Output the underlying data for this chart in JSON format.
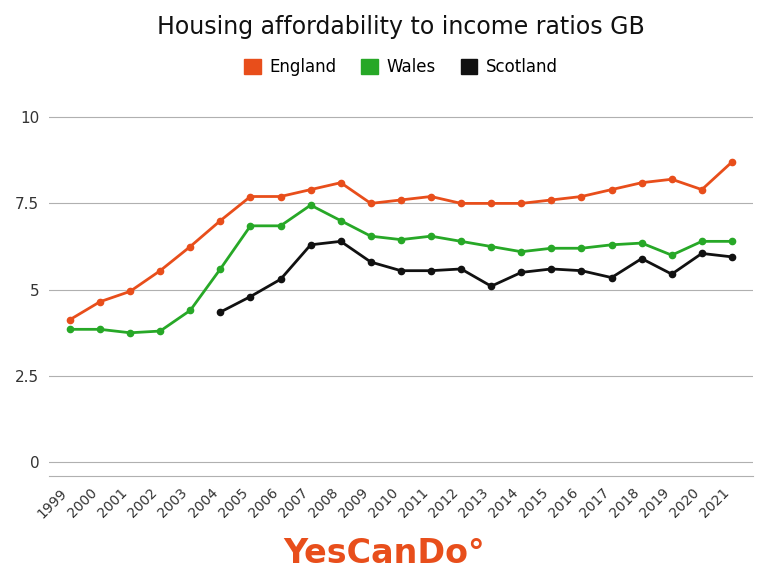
{
  "title": "Housing affordability to income ratios GB",
  "years": [
    1999,
    2000,
    2001,
    2002,
    2003,
    2004,
    2005,
    2006,
    2007,
    2008,
    2009,
    2010,
    2011,
    2012,
    2013,
    2014,
    2015,
    2016,
    2017,
    2018,
    2019,
    2020,
    2021
  ],
  "england": [
    4.13,
    4.65,
    4.95,
    5.55,
    6.25,
    7.0,
    7.7,
    7.7,
    7.9,
    8.1,
    7.5,
    7.6,
    7.7,
    7.5,
    7.5,
    7.5,
    7.6,
    7.7,
    7.9,
    8.1,
    8.2,
    7.9,
    8.7
  ],
  "wales": [
    3.85,
    3.85,
    3.75,
    3.8,
    4.4,
    5.6,
    6.85,
    6.85,
    7.45,
    7.0,
    6.55,
    6.45,
    6.55,
    6.4,
    6.25,
    6.1,
    6.2,
    6.2,
    6.3,
    6.35,
    6.0,
    6.4,
    6.4
  ],
  "scotland": [
    null,
    null,
    null,
    null,
    null,
    4.35,
    4.8,
    5.3,
    6.3,
    6.4,
    5.8,
    5.55,
    5.55,
    5.6,
    5.1,
    5.5,
    5.6,
    5.55,
    5.35,
    5.9,
    5.45,
    6.05,
    5.95
  ],
  "england_color": "#e84e1b",
  "wales_color": "#27a827",
  "scotland_color": "#111111",
  "background_color": "#ffffff",
  "grid_color": "#b0b0b0",
  "ytick_values": [
    0,
    2.5,
    5,
    7.5,
    10
  ],
  "ytick_labels": [
    "0",
    "2.5",
    "5",
    "7.5",
    "10"
  ],
  "ylim": [
    -0.4,
    10.8
  ],
  "xlim_min": 1998.3,
  "xlim_max": 2021.7,
  "brand_text": "YesCanDo",
  "brand_superscript": "°",
  "brand_color": "#e84e1b",
  "legend_labels": [
    "England",
    "Wales",
    "Scotland"
  ],
  "marker_size": 4.5,
  "line_width": 2.0,
  "title_fontsize": 17,
  "tick_fontsize": 11,
  "legend_fontsize": 12,
  "brand_fontsize": 24
}
